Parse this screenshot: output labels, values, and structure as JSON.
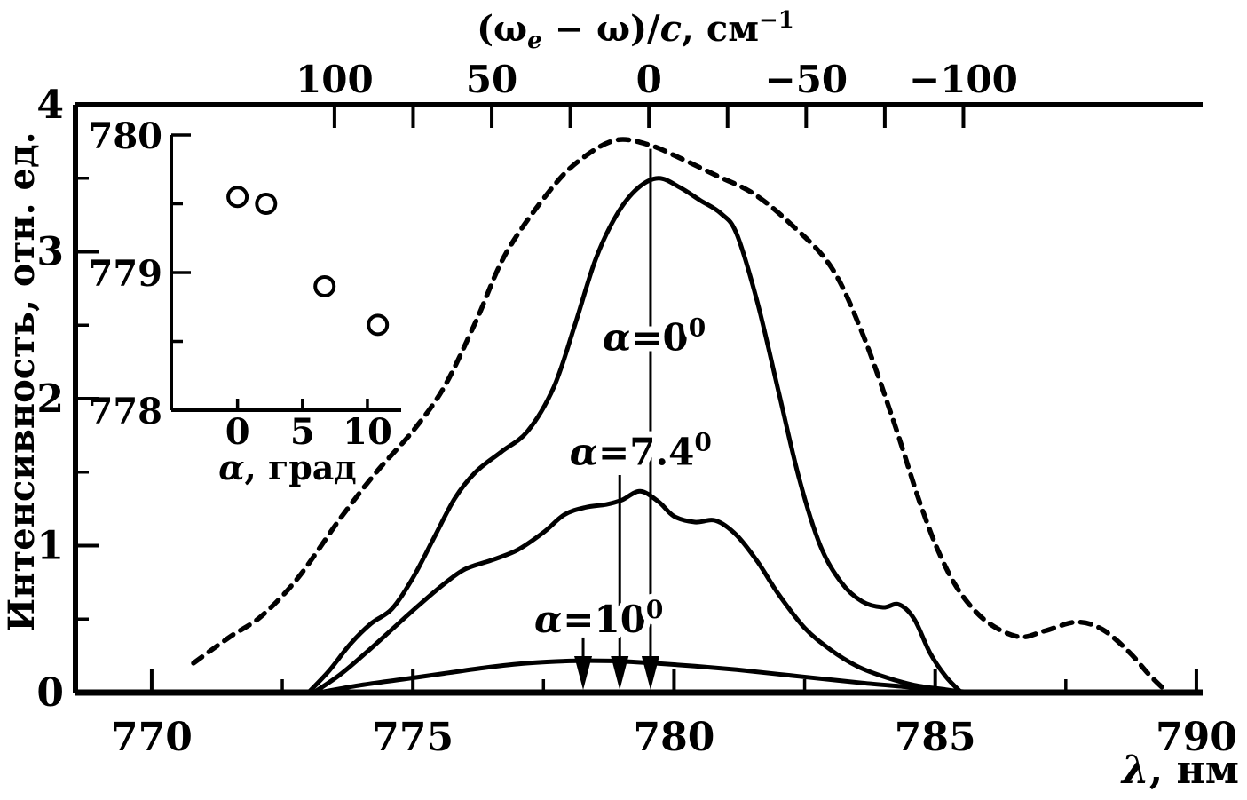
{
  "colors": {
    "ink": "#000000",
    "bg": "#ffffff"
  },
  "chart_data": [
    {
      "id": "main-spectra",
      "type": "line",
      "title": "",
      "xlabel_parts": [
        {
          "t": "λ",
          "s": "it"
        },
        {
          "t": ", нм"
        }
      ],
      "ylabel": "Интенсивность, отн. ед.",
      "xlim": [
        768.54,
        790.12
      ],
      "ylim": [
        0,
        4
      ],
      "grid": false,
      "x_ticks": {
        "major": [
          770,
          775,
          780,
          785,
          790
        ],
        "major_labels": [
          "770",
          "775",
          "780",
          "785",
          "790"
        ],
        "minor": [
          772.5,
          777.5,
          782.5,
          787.5
        ]
      },
      "y_ticks": {
        "major": [
          4,
          3,
          2,
          1,
          0
        ],
        "major_labels": [
          "4",
          "3",
          "2",
          "1",
          "0"
        ],
        "minor": [
          0.5,
          1.5,
          2.5,
          3.5
        ]
      },
      "top_axis": {
        "title_parts": [
          {
            "t": "(ω"
          },
          {
            "t": "e",
            "s": "subit"
          },
          {
            "t": " − ω)/"
          },
          {
            "t": "c",
            "s": "it"
          },
          {
            "t": ", см"
          },
          {
            "t": "−1",
            "s": "sup"
          }
        ],
        "tick_values": [
          100,
          75,
          50,
          25,
          0,
          -25,
          -50,
          -75,
          -100
        ],
        "labeled_values": [
          100,
          50,
          0,
          -50,
          -100
        ],
        "labels": [
          "100",
          "50",
          "0",
          "−50",
          "−100"
        ],
        "lambda_at_zero": 779.52,
        "nm_per_inv_cm": -0.0602
      },
      "series": [
        {
          "name": "dashed-envelope",
          "style": "dashed",
          "points": [
            [
              770.8,
              0.2
            ],
            [
              771.5,
              0.38
            ],
            [
              772.1,
              0.52
            ],
            [
              772.8,
              0.78
            ],
            [
              773.6,
              1.18
            ],
            [
              774.3,
              1.5
            ],
            [
              775.0,
              1.78
            ],
            [
              775.6,
              2.08
            ],
            [
              776.2,
              2.52
            ],
            [
              776.8,
              3.0
            ],
            [
              777.7,
              3.45
            ],
            [
              778.3,
              3.65
            ],
            [
              778.9,
              3.76
            ],
            [
              779.5,
              3.73
            ],
            [
              780.1,
              3.64
            ],
            [
              780.8,
              3.52
            ],
            [
              781.5,
              3.4
            ],
            [
              782.2,
              3.2
            ],
            [
              783.0,
              2.9
            ],
            [
              783.6,
              2.45
            ],
            [
              784.2,
              1.85
            ],
            [
              784.7,
              1.3
            ],
            [
              785.1,
              0.93
            ],
            [
              785.5,
              0.67
            ],
            [
              786.0,
              0.48
            ],
            [
              786.6,
              0.38
            ],
            [
              787.1,
              0.42
            ],
            [
              787.7,
              0.48
            ],
            [
              788.2,
              0.43
            ],
            [
              788.7,
              0.28
            ],
            [
              789.1,
              0.12
            ],
            [
              789.45,
              0.0
            ]
          ]
        },
        {
          "name": "alpha-0",
          "style": "solid",
          "points": [
            [
              773.0,
              0.0
            ],
            [
              773.4,
              0.15
            ],
            [
              773.8,
              0.33
            ],
            [
              774.2,
              0.47
            ],
            [
              774.6,
              0.57
            ],
            [
              775.0,
              0.78
            ],
            [
              775.4,
              1.05
            ],
            [
              775.8,
              1.32
            ],
            [
              776.2,
              1.5
            ],
            [
              776.7,
              1.64
            ],
            [
              777.2,
              1.78
            ],
            [
              777.7,
              2.08
            ],
            [
              778.1,
              2.5
            ],
            [
              778.5,
              2.95
            ],
            [
              778.9,
              3.25
            ],
            [
              779.3,
              3.43
            ],
            [
              779.7,
              3.5
            ],
            [
              780.1,
              3.44
            ],
            [
              780.5,
              3.35
            ],
            [
              780.9,
              3.26
            ],
            [
              781.2,
              3.12
            ],
            [
              781.6,
              2.65
            ],
            [
              782.0,
              2.05
            ],
            [
              782.4,
              1.45
            ],
            [
              782.8,
              1.0
            ],
            [
              783.2,
              0.75
            ],
            [
              783.6,
              0.62
            ],
            [
              784.0,
              0.58
            ],
            [
              784.3,
              0.6
            ],
            [
              784.6,
              0.5
            ],
            [
              784.9,
              0.27
            ],
            [
              785.2,
              0.11
            ],
            [
              785.5,
              0.0
            ]
          ]
        },
        {
          "name": "alpha-7.4",
          "style": "solid",
          "points": [
            [
              773.1,
              0.0
            ],
            [
              773.6,
              0.12
            ],
            [
              774.1,
              0.27
            ],
            [
              774.6,
              0.43
            ],
            [
              775.1,
              0.59
            ],
            [
              775.6,
              0.74
            ],
            [
              776.0,
              0.84
            ],
            [
              776.5,
              0.9
            ],
            [
              777.0,
              0.97
            ],
            [
              777.5,
              1.09
            ],
            [
              777.9,
              1.21
            ],
            [
              778.3,
              1.26
            ],
            [
              778.7,
              1.28
            ],
            [
              779.0,
              1.31
            ],
            [
              779.35,
              1.37
            ],
            [
              779.7,
              1.3
            ],
            [
              780.0,
              1.2
            ],
            [
              780.4,
              1.16
            ],
            [
              780.8,
              1.17
            ],
            [
              781.2,
              1.07
            ],
            [
              781.6,
              0.89
            ],
            [
              782.0,
              0.67
            ],
            [
              782.5,
              0.44
            ],
            [
              783.0,
              0.29
            ],
            [
              783.5,
              0.18
            ],
            [
              784.0,
              0.11
            ],
            [
              784.6,
              0.05
            ],
            [
              785.2,
              0.02
            ],
            [
              785.6,
              0.0
            ]
          ]
        },
        {
          "name": "alpha-10",
          "style": "solid",
          "points": [
            [
              773.2,
              0.0
            ],
            [
              774.0,
              0.05
            ],
            [
              774.8,
              0.09
            ],
            [
              775.6,
              0.13
            ],
            [
              776.4,
              0.17
            ],
            [
              777.2,
              0.2
            ],
            [
              778.0,
              0.215
            ],
            [
              778.8,
              0.215
            ],
            [
              779.6,
              0.2
            ],
            [
              780.4,
              0.18
            ],
            [
              781.2,
              0.155
            ],
            [
              782.0,
              0.125
            ],
            [
              782.8,
              0.095
            ],
            [
              783.6,
              0.065
            ],
            [
              784.4,
              0.04
            ],
            [
              785.2,
              0.015
            ],
            [
              785.8,
              0.0
            ]
          ]
        }
      ],
      "annotations": {
        "curve_labels": [
          {
            "name": "alpha-0-label",
            "parts": [
              {
                "t": "α",
                "s": "it"
              },
              {
                "t": "=0"
              },
              {
                "t": "0",
                "s": "sup"
              }
            ],
            "x_nm": 779.62,
            "y_val": 2.33
          },
          {
            "name": "alpha-7.4-label",
            "parts": [
              {
                "t": "α",
                "s": "it"
              },
              {
                "t": "=7.4"
              },
              {
                "t": "0",
                "s": "sup"
              }
            ],
            "x_nm": 779.36,
            "y_val": 1.55
          },
          {
            "name": "alpha-10-label",
            "parts": [
              {
                "t": "α",
                "s": "it"
              },
              {
                "t": "=10"
              },
              {
                "t": "0",
                "s": "sup"
              }
            ],
            "x_nm": 778.56,
            "y_val": 0.41
          }
        ],
        "peak_markers": [
          {
            "name": "peak-marker-alpha-0",
            "x_nm": 779.55,
            "top_val": 3.7
          },
          {
            "name": "peak-marker-alpha-7.4",
            "x_nm": 778.96,
            "top_val": 1.48
          },
          {
            "name": "peak-marker-alpha-10",
            "x_nm": 778.26,
            "top_val": 0.375
          }
        ]
      }
    },
    {
      "id": "inset-peak-position",
      "type": "scatter",
      "xlabel_parts": [
        {
          "t": "α",
          "s": "it"
        },
        {
          "t": ", град"
        }
      ],
      "xlim": [
        -5.1,
        12.6
      ],
      "ylim": [
        778,
        780
      ],
      "x_ticks": {
        "major": [
          0,
          5,
          10
        ],
        "major_labels": [
          "0",
          "5",
          "10"
        ]
      },
      "y_ticks": {
        "major": [
          780,
          779,
          778
        ],
        "major_labels": [
          "780",
          "779",
          "778"
        ],
        "minor": [
          779.5,
          778.5
        ]
      },
      "points": [
        [
          0,
          779.55
        ],
        [
          2.2,
          779.5
        ],
        [
          6.7,
          778.9
        ],
        [
          10.8,
          778.62
        ]
      ]
    }
  ]
}
